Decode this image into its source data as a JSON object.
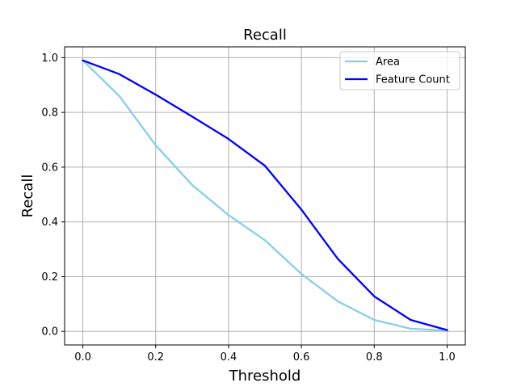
{
  "chart_data": {
    "type": "line",
    "title": "Recall",
    "xlabel": "Threshold",
    "ylabel": "Recall",
    "x": [
      0.0,
      0.1,
      0.2,
      0.3,
      0.4,
      0.5,
      0.6,
      0.7,
      0.8,
      0.9,
      1.0
    ],
    "series": [
      {
        "name": "Area",
        "color": "#87ceeb",
        "values": [
          0.99,
          0.86,
          0.68,
          0.535,
          0.425,
          0.333,
          0.21,
          0.11,
          0.042,
          0.01,
          0.003
        ]
      },
      {
        "name": "Feature Count",
        "color": "#0000ff",
        "values": [
          0.99,
          0.94,
          0.865,
          0.785,
          0.703,
          0.605,
          0.445,
          0.265,
          0.128,
          0.042,
          0.005
        ]
      }
    ],
    "xlim": [
      -0.05,
      1.05
    ],
    "ylim": [
      -0.0495,
      1.0395
    ],
    "xticks": [
      0.0,
      0.2,
      0.4,
      0.6,
      0.8,
      1.0
    ],
    "xtick_labels": [
      "0.0",
      "0.2",
      "0.4",
      "0.6",
      "0.8",
      "1.0"
    ],
    "yticks": [
      0.0,
      0.2,
      0.4,
      0.6,
      0.8,
      1.0
    ],
    "ytick_labels": [
      "0.0",
      "0.2",
      "0.4",
      "0.6",
      "0.8",
      "1.0"
    ],
    "grid": true,
    "legend_position": "top-right"
  }
}
